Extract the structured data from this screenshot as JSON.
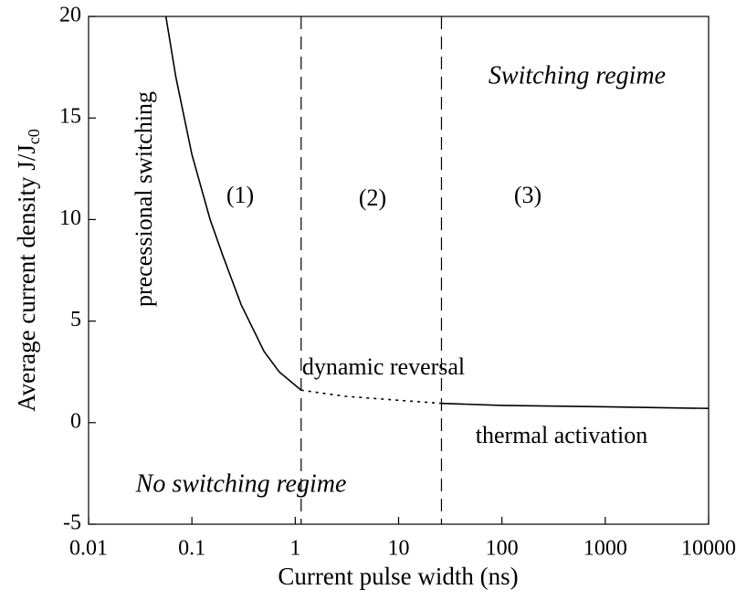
{
  "chart_data": {
    "type": "line",
    "xlabel": "Current pulse width (ns)",
    "ylabel": "Average current density J/J",
    "ylabel_sub": "c0",
    "xscale": "log",
    "xlim": [
      0.01,
      10000
    ],
    "xticks": [
      0.01,
      0.1,
      1,
      10,
      100,
      1000,
      10000
    ],
    "ylim": [
      -5,
      20
    ],
    "yticks": [
      -5,
      0,
      5,
      10,
      15,
      20
    ],
    "vlines": [
      1.14,
      26
    ],
    "series": [
      {
        "color": "#000000",
        "linestyle": "solid",
        "x": [
          0.056,
          0.07,
          0.1,
          0.15,
          0.2,
          0.3,
          0.5,
          0.7,
          1.14
        ],
        "values": [
          20,
          17,
          13.2,
          10,
          8.2,
          5.8,
          3.5,
          2.5,
          1.6
        ]
      },
      {
        "color": "#000000",
        "linestyle": "dotted",
        "x": [
          1.14,
          3,
          10,
          26
        ],
        "values": [
          1.6,
          1.3,
          1.1,
          0.95
        ]
      },
      {
        "color": "#000000",
        "linestyle": "solid",
        "x": [
          26,
          100,
          1000,
          10000
        ],
        "values": [
          0.95,
          0.85,
          0.78,
          0.7
        ]
      }
    ],
    "annotations": [
      "Switching regime",
      "No switching regime",
      "precessional switching",
      "(1)",
      "(2)",
      "(3)",
      "dynamic reversal",
      "thermal activation"
    ]
  }
}
